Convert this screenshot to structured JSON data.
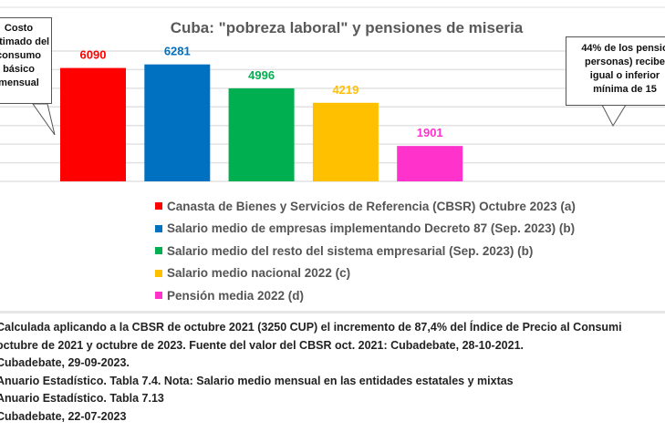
{
  "chart_data": {
    "type": "bar",
    "title": "Cuba: \"pobreza laboral\" y pensiones de miseria",
    "categories": [
      "Canasta de Bienes y Servicios de Referencia (CBSR) Octubre 2023 (a)",
      "Salario medio de empresas implementando Decreto 87 (Sep. 2023) (b)",
      "Salario medio del resto del sistema empresarial (Sep. 2023) (b)",
      "Salario medio nacional 2022 (c)",
      "Pensión media 2022 (d)"
    ],
    "values": [
      6090,
      6281,
      4996,
      4219,
      1901
    ],
    "value_labels": [
      "6090",
      "6281",
      "4996",
      "4219",
      "1901"
    ],
    "colors": [
      "#ff0000",
      "#0070c0",
      "#00b050",
      "#ffc000",
      "#ff33cc"
    ],
    "ylim": [
      0,
      7000
    ],
    "grid": true,
    "ytick_step": 1000,
    "legend_placement": "bottom"
  },
  "callouts": {
    "left": [
      "Costo",
      "estimado del",
      "consumo",
      "básico",
      "mensual"
    ],
    "right": [
      "44% de los pensio",
      "personas) recibe",
      "igual o inferior",
      "mínima de 15"
    ]
  },
  "notes": [
    "Calculada aplicando a la CBSR de octubre 2021 (3250 CUP) el incremento de 87,4% del Índice de Precio al Consumi",
    "octubre de 2021 y octubre de 2023. Fuente del valor del CBSR oct. 2021: Cubadebate, 28-10-2021.",
    "Cubadebate, 29-09-2023.",
    "Anuario Estadístico. Tabla 7.4. Nota: Salario medio mensual en las entidades estatales y mixtas",
    "Anuario Estadístico. Tabla 7.13",
    "Cubadebate, 22-07-2023"
  ]
}
